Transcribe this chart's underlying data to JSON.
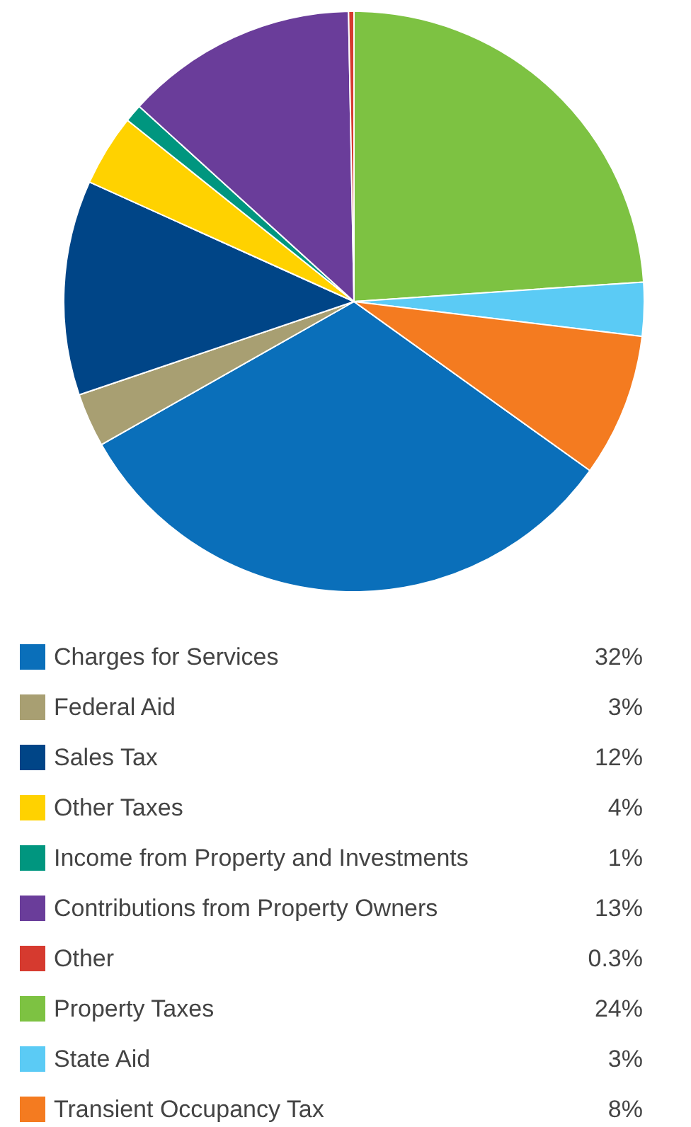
{
  "chart_data": {
    "type": "pie",
    "categories": [
      "Charges for Services",
      "Federal Aid",
      "Sales Tax",
      "Other Taxes",
      "Income from Property and Investments",
      "Contributions from Property Owners",
      "Other",
      "Property Taxes",
      "State Aid",
      "Transient Occupancy Tax"
    ],
    "values": [
      32,
      3,
      12,
      4,
      1,
      13,
      0.3,
      24,
      3,
      8
    ],
    "colors": [
      "#0a6fba",
      "#a89f72",
      "#004587",
      "#ffd200",
      "#00967f",
      "#6a3d9a",
      "#d63a2f",
      "#7dc242",
      "#5bcbf5",
      "#f47b20"
    ],
    "value_labels": [
      "32%",
      "3%",
      "12%",
      "4%",
      "1%",
      "13%",
      "0.3%",
      "24%",
      "3%",
      "8%"
    ],
    "legend": "bottom"
  }
}
